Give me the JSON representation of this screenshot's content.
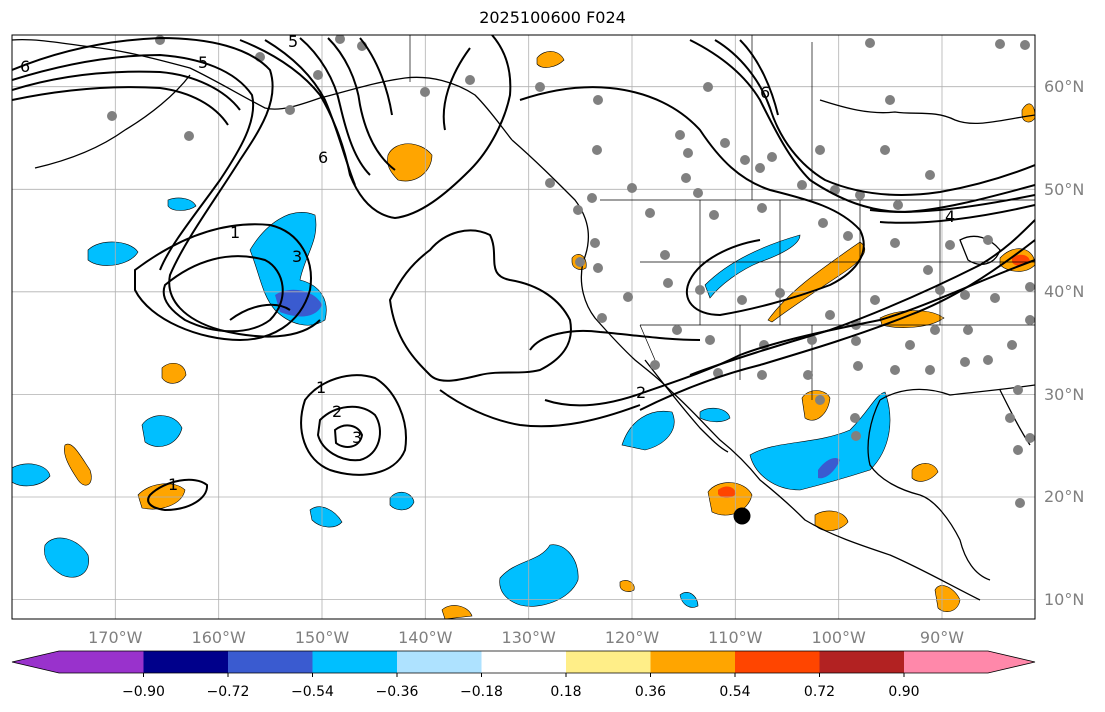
{
  "title": "2025100600 F024",
  "map": {
    "projection": "plate-carree",
    "lon_range": [
      -180,
      -81
    ],
    "lat_range": [
      7,
      64
    ],
    "lon_labels": [
      "170°W",
      "160°W",
      "150°W",
      "140°W",
      "130°W",
      "120°W",
      "110°W",
      "100°W",
      "90°W"
    ],
    "lat_labels": [
      "60°N",
      "50°N",
      "40°N",
      "30°N",
      "20°N",
      "10°N"
    ],
    "grid": true,
    "contour_labels": [
      "6",
      "5",
      "5",
      "6",
      "1",
      "3",
      "1",
      "2",
      "3",
      "1",
      "2",
      "6",
      "4"
    ]
  },
  "colorbar": {
    "tick_labels": [
      "−0.90",
      "−0.72",
      "−0.54",
      "−0.36",
      "−0.18",
      "0.18",
      "0.36",
      "0.54",
      "0.72",
      "0.90"
    ],
    "colors": [
      "#9932cc",
      "#00008b",
      "#3a5bd0",
      "#00bfff",
      "#aee2ff",
      "#ffffff",
      "#ffee88",
      "#ffa500",
      "#ff4500",
      "#b22222",
      "#ff88aa"
    ]
  },
  "colors": {
    "station_dot": "#808080",
    "contour": "#000000",
    "grid": "#b0b0b0"
  }
}
